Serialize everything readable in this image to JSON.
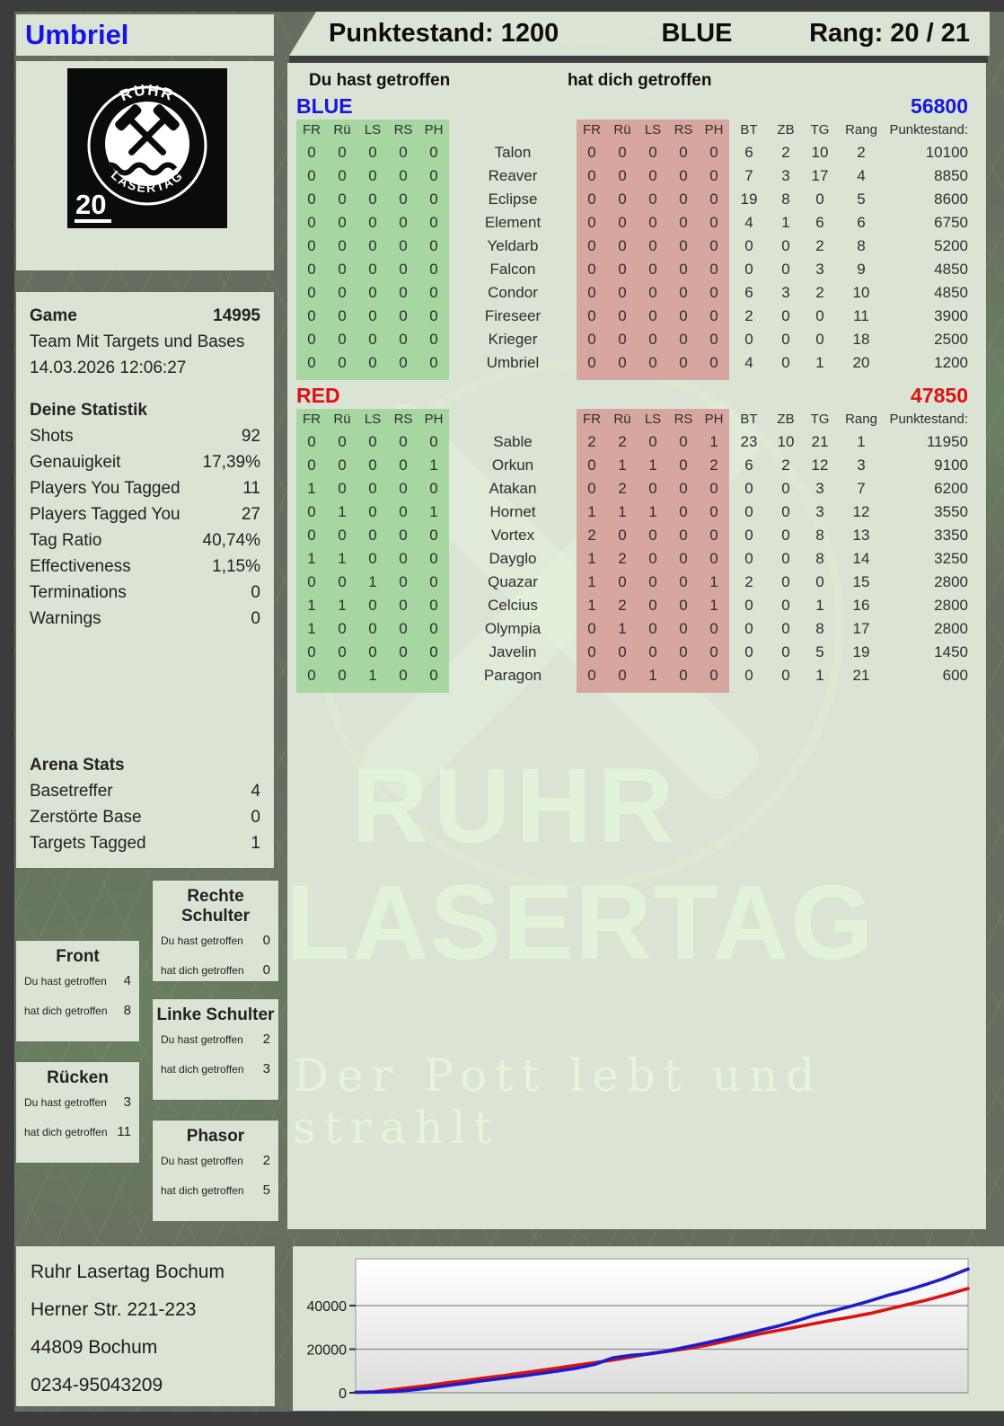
{
  "header": {
    "player": "Umbriel",
    "score_label": "Punktestand: 1200",
    "team": "BLUE",
    "rank_label": "Rang: 20 / 21"
  },
  "logo": {
    "arc_top": "RUHR",
    "arc_bottom": "LASERTAG",
    "badge": "20"
  },
  "game": {
    "label": "Game",
    "number": "14995",
    "mode": "Team Mit Targets und Bases",
    "datetime": "14.03.2026 12:06:27"
  },
  "stats": {
    "title": "Deine Statistik",
    "rows": [
      {
        "label": "Shots",
        "value": "92"
      },
      {
        "label": "Genauigkeit",
        "value": "17,39%"
      },
      {
        "label": "Players You Tagged",
        "value": "11"
      },
      {
        "label": "Players Tagged You",
        "value": "27"
      },
      {
        "label": "Tag Ratio",
        "value": "40,74%"
      },
      {
        "label": "Effectiveness",
        "value": "1,15%"
      },
      {
        "label": "Terminations",
        "value": "0"
      },
      {
        "label": "Warnings",
        "value": "0"
      }
    ]
  },
  "arena": {
    "title": "Arena Stats",
    "rows": [
      {
        "label": "Basetreffer",
        "value": "4"
      },
      {
        "label": "Zerstörte Base",
        "value": "0"
      },
      {
        "label": "Targets Tagged",
        "value": "1"
      }
    ]
  },
  "hitboxes": {
    "you_label": "Du hast getroffen",
    "them_label": "hat dich getroffen",
    "boxes": [
      {
        "title": "Front",
        "you": "4",
        "them": "8"
      },
      {
        "title": "Rücken",
        "you": "3",
        "them": "11"
      },
      {
        "title": "Rechte Schulter",
        "you": "0",
        "them": "0"
      },
      {
        "title": "Linke Schulter",
        "you": "2",
        "them": "3"
      },
      {
        "title": "Phasor",
        "you": "2",
        "them": "5"
      }
    ]
  },
  "tables": {
    "you_header": "Du hast getroffen",
    "them_header": "hat dich getroffen",
    "hit_cols": [
      "FR",
      "Rü",
      "LS",
      "RS",
      "PH"
    ],
    "stat_cols": [
      "BT",
      "ZB",
      "TG",
      "Rang",
      "Punktestand:"
    ],
    "teams": [
      {
        "name": "BLUE",
        "total": "56800",
        "color": "#1717dd",
        "rows": [
          {
            "name": "Talon",
            "you": [
              0,
              0,
              0,
              0,
              0
            ],
            "them": [
              0,
              0,
              0,
              0,
              0
            ],
            "bt": 6,
            "zb": 2,
            "tg": 10,
            "rang": 2,
            "punkte": "10100"
          },
          {
            "name": "Reaver",
            "you": [
              0,
              0,
              0,
              0,
              0
            ],
            "them": [
              0,
              0,
              0,
              0,
              0
            ],
            "bt": 7,
            "zb": 3,
            "tg": 17,
            "rang": 4,
            "punkte": "8850"
          },
          {
            "name": "Eclipse",
            "you": [
              0,
              0,
              0,
              0,
              0
            ],
            "them": [
              0,
              0,
              0,
              0,
              0
            ],
            "bt": 19,
            "zb": 8,
            "tg": 0,
            "rang": 5,
            "punkte": "8600"
          },
          {
            "name": "Element",
            "you": [
              0,
              0,
              0,
              0,
              0
            ],
            "them": [
              0,
              0,
              0,
              0,
              0
            ],
            "bt": 4,
            "zb": 1,
            "tg": 6,
            "rang": 6,
            "punkte": "6750"
          },
          {
            "name": "Yeldarb",
            "you": [
              0,
              0,
              0,
              0,
              0
            ],
            "them": [
              0,
              0,
              0,
              0,
              0
            ],
            "bt": 0,
            "zb": 0,
            "tg": 2,
            "rang": 8,
            "punkte": "5200"
          },
          {
            "name": "Falcon",
            "you": [
              0,
              0,
              0,
              0,
              0
            ],
            "them": [
              0,
              0,
              0,
              0,
              0
            ],
            "bt": 0,
            "zb": 0,
            "tg": 3,
            "rang": 9,
            "punkte": "4850"
          },
          {
            "name": "Condor",
            "you": [
              0,
              0,
              0,
              0,
              0
            ],
            "them": [
              0,
              0,
              0,
              0,
              0
            ],
            "bt": 6,
            "zb": 3,
            "tg": 2,
            "rang": 10,
            "punkte": "4850"
          },
          {
            "name": "Fireseer",
            "you": [
              0,
              0,
              0,
              0,
              0
            ],
            "them": [
              0,
              0,
              0,
              0,
              0
            ],
            "bt": 2,
            "zb": 0,
            "tg": 0,
            "rang": 11,
            "punkte": "3900"
          },
          {
            "name": "Krieger",
            "you": [
              0,
              0,
              0,
              0,
              0
            ],
            "them": [
              0,
              0,
              0,
              0,
              0
            ],
            "bt": 0,
            "zb": 0,
            "tg": 0,
            "rang": 18,
            "punkte": "2500"
          },
          {
            "name": "Umbriel",
            "you": [
              0,
              0,
              0,
              0,
              0
            ],
            "them": [
              0,
              0,
              0,
              0,
              0
            ],
            "bt": 4,
            "zb": 0,
            "tg": 1,
            "rang": 20,
            "punkte": "1200"
          }
        ]
      },
      {
        "name": "RED",
        "total": "47850",
        "color": "#dd1111",
        "rows": [
          {
            "name": "Sable",
            "you": [
              0,
              0,
              0,
              0,
              0
            ],
            "them": [
              2,
              2,
              0,
              0,
              1
            ],
            "bt": 23,
            "zb": 10,
            "tg": 21,
            "rang": 1,
            "punkte": "11950"
          },
          {
            "name": "Orkun",
            "you": [
              0,
              0,
              0,
              0,
              1
            ],
            "them": [
              0,
              1,
              1,
              0,
              2
            ],
            "bt": 6,
            "zb": 2,
            "tg": 12,
            "rang": 3,
            "punkte": "9100"
          },
          {
            "name": "Atakan",
            "you": [
              1,
              0,
              0,
              0,
              0
            ],
            "them": [
              0,
              2,
              0,
              0,
              0
            ],
            "bt": 0,
            "zb": 0,
            "tg": 3,
            "rang": 7,
            "punkte": "6200"
          },
          {
            "name": "Hornet",
            "you": [
              0,
              1,
              0,
              0,
              1
            ],
            "them": [
              1,
              1,
              1,
              0,
              0
            ],
            "bt": 0,
            "zb": 0,
            "tg": 3,
            "rang": 12,
            "punkte": "3550"
          },
          {
            "name": "Vortex",
            "you": [
              0,
              0,
              0,
              0,
              0
            ],
            "them": [
              2,
              0,
              0,
              0,
              0
            ],
            "bt": 0,
            "zb": 0,
            "tg": 8,
            "rang": 13,
            "punkte": "3350"
          },
          {
            "name": "Dayglo",
            "you": [
              1,
              1,
              0,
              0,
              0
            ],
            "them": [
              1,
              2,
              0,
              0,
              0
            ],
            "bt": 0,
            "zb": 0,
            "tg": 8,
            "rang": 14,
            "punkte": "3250"
          },
          {
            "name": "Quazar",
            "you": [
              0,
              0,
              1,
              0,
              0
            ],
            "them": [
              1,
              0,
              0,
              0,
              1
            ],
            "bt": 2,
            "zb": 0,
            "tg": 0,
            "rang": 15,
            "punkte": "2800"
          },
          {
            "name": "Celcius",
            "you": [
              1,
              1,
              0,
              0,
              0
            ],
            "them": [
              1,
              2,
              0,
              0,
              1
            ],
            "bt": 0,
            "zb": 0,
            "tg": 1,
            "rang": 16,
            "punkte": "2800"
          },
          {
            "name": "Olympia",
            "you": [
              1,
              0,
              0,
              0,
              0
            ],
            "them": [
              0,
              1,
              0,
              0,
              0
            ],
            "bt": 0,
            "zb": 0,
            "tg": 8,
            "rang": 17,
            "punkte": "2800"
          },
          {
            "name": "Javelin",
            "you": [
              0,
              0,
              0,
              0,
              0
            ],
            "them": [
              0,
              0,
              0,
              0,
              0
            ],
            "bt": 0,
            "zb": 0,
            "tg": 5,
            "rang": 19,
            "punkte": "1450"
          },
          {
            "name": "Paragon",
            "you": [
              0,
              0,
              1,
              0,
              0
            ],
            "them": [
              0,
              0,
              1,
              0,
              0
            ],
            "bt": 0,
            "zb": 0,
            "tg": 1,
            "rang": 21,
            "punkte": "600"
          }
        ]
      }
    ]
  },
  "watermark": {
    "line1": "RUHR",
    "line2": "LASERTAG",
    "line3": "Der Pott lebt und strahlt"
  },
  "address": {
    "lines": [
      "Ruhr Lasertag Bochum",
      "Herner Str. 221-223",
      "44809 Bochum",
      "0234-95043209"
    ]
  },
  "chart_data": {
    "type": "line",
    "title": "",
    "xlabel": "",
    "ylabel": "",
    "yticks": [
      0,
      20000,
      40000
    ],
    "ylim": [
      0,
      61000
    ],
    "grid": true,
    "legend": "none",
    "x_unit": "game time (percent)",
    "series": [
      {
        "name": "RED",
        "color": "#dd1111",
        "points": [
          [
            0,
            200
          ],
          [
            3,
            400
          ],
          [
            6,
            1400
          ],
          [
            9,
            2400
          ],
          [
            12,
            3400
          ],
          [
            15,
            4600
          ],
          [
            18,
            5600
          ],
          [
            21,
            6800
          ],
          [
            24,
            7800
          ],
          [
            27,
            9000
          ],
          [
            30,
            10200
          ],
          [
            33,
            11400
          ],
          [
            36,
            12600
          ],
          [
            39,
            13800
          ],
          [
            42,
            15000
          ],
          [
            45,
            16400
          ],
          [
            48,
            18000
          ],
          [
            51,
            19000
          ],
          [
            54,
            20200
          ],
          [
            57,
            21600
          ],
          [
            60,
            23400
          ],
          [
            63,
            25200
          ],
          [
            66,
            27000
          ],
          [
            69,
            28600
          ],
          [
            72,
            30200
          ],
          [
            75,
            31800
          ],
          [
            78,
            33400
          ],
          [
            81,
            34800
          ],
          [
            84,
            36400
          ],
          [
            87,
            38400
          ],
          [
            90,
            40400
          ],
          [
            93,
            42400
          ],
          [
            96,
            44600
          ],
          [
            100,
            47850
          ]
        ]
      },
      {
        "name": "BLUE",
        "color": "#1c1cd0",
        "points": [
          [
            0,
            200
          ],
          [
            3,
            300
          ],
          [
            6,
            500
          ],
          [
            9,
            1200
          ],
          [
            12,
            2200
          ],
          [
            15,
            3300
          ],
          [
            18,
            4400
          ],
          [
            21,
            5600
          ],
          [
            24,
            6600
          ],
          [
            27,
            7600
          ],
          [
            30,
            8800
          ],
          [
            33,
            10000
          ],
          [
            36,
            11200
          ],
          [
            39,
            13000
          ],
          [
            42,
            16000
          ],
          [
            45,
            17200
          ],
          [
            48,
            17800
          ],
          [
            51,
            19200
          ],
          [
            54,
            21000
          ],
          [
            57,
            22800
          ],
          [
            60,
            24600
          ],
          [
            63,
            26600
          ],
          [
            66,
            28600
          ],
          [
            69,
            30600
          ],
          [
            72,
            33000
          ],
          [
            75,
            35600
          ],
          [
            78,
            37600
          ],
          [
            81,
            39800
          ],
          [
            84,
            42200
          ],
          [
            87,
            44800
          ],
          [
            90,
            47000
          ],
          [
            93,
            49600
          ],
          [
            96,
            52400
          ],
          [
            100,
            56800
          ]
        ]
      }
    ]
  }
}
